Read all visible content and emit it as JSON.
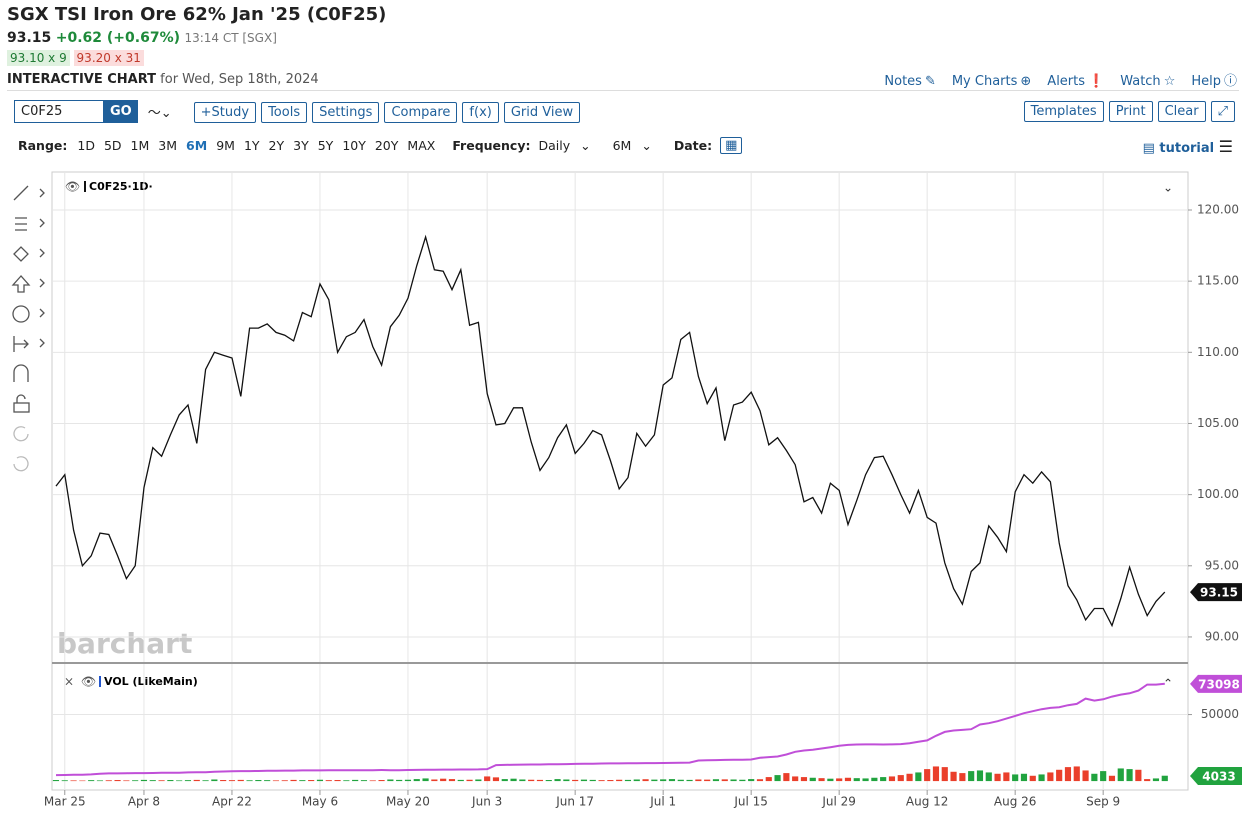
{
  "header": {
    "title": "SGX TSI Iron Ore 62% Jan '25 (C0F25)",
    "last": "93.15",
    "change": "+0.62 (+0.67%)",
    "time": "13:14 CT [SGX]",
    "bid": "93.10 x 9",
    "ask": "93.20 x 31",
    "chart_label": "INTERACTIVE CHART",
    "date": "for Wed, Sep 18th, 2024",
    "links": [
      "Notes",
      "My Charts",
      "Alerts",
      "Watch",
      "Help"
    ]
  },
  "toolbar": {
    "symbol": "C0F25",
    "go": "GO",
    "buttons": [
      "+Study",
      "Tools",
      "Settings",
      "Compare",
      "f(x)",
      "Grid View"
    ],
    "right_buttons": [
      "Templates",
      "Print",
      "Clear"
    ]
  },
  "range_bar": {
    "range_label": "Range:",
    "ranges": [
      "1D",
      "5D",
      "1M",
      "3M",
      "6M",
      "9M",
      "1Y",
      "2Y",
      "3Y",
      "5Y",
      "10Y",
      "20Y",
      "MAX"
    ],
    "active_index": 4,
    "frequency_label": "Frequency:",
    "frequency": "Daily",
    "period": "6M",
    "date_label": "Date:",
    "tutorial": "tutorial"
  },
  "chart_data": [
    {
      "type": "line",
      "label": "C0F25·1D·",
      "watermark": "barchart",
      "color": "#111111",
      "values": [
        100.6,
        101.4,
        97.5,
        95.0,
        95.7,
        97.3,
        97.2,
        95.7,
        94.1,
        95.0,
        100.5,
        103.3,
        102.7,
        104.2,
        105.6,
        106.3,
        103.6,
        108.8,
        110.0,
        109.8,
        109.6,
        106.9,
        111.7,
        111.7,
        112.0,
        111.4,
        111.2,
        110.8,
        112.8,
        112.5,
        114.8,
        113.7,
        110.0,
        111.1,
        111.4,
        112.3,
        110.4,
        109.1,
        111.8,
        112.6,
        113.8,
        116.1,
        118.1,
        115.8,
        115.7,
        114.4,
        115.8,
        111.9,
        112.1,
        107.1,
        104.9,
        105.0,
        106.1,
        106.1,
        103.7,
        101.7,
        102.6,
        104.0,
        104.9,
        102.9,
        103.6,
        104.5,
        104.2,
        102.4,
        100.4,
        101.2,
        104.3,
        103.4,
        104.2,
        107.7,
        108.2,
        110.9,
        111.4,
        108.3,
        106.4,
        107.5,
        103.8,
        106.3,
        106.5,
        107.2,
        105.9,
        103.5,
        104.0,
        103.1,
        102.1,
        99.5,
        99.8,
        98.7,
        100.8,
        100.3,
        97.9,
        99.6,
        101.4,
        102.6,
        102.7,
        101.4,
        100.0,
        98.7,
        100.3,
        98.4,
        98.0,
        95.2,
        93.4,
        92.3,
        94.6,
        95.2,
        97.8,
        97.0,
        96.0,
        100.2,
        101.4,
        100.8,
        101.6,
        100.9,
        96.6,
        93.6,
        92.6,
        91.2,
        92.0,
        92.0,
        90.8,
        92.7,
        94.9,
        93.0,
        91.5,
        92.5,
        93.15
      ],
      "xlim": [
        -0.45,
        128.64
      ],
      "xticks": [
        {
          "value": 1,
          "label": "Mar 25"
        },
        {
          "value": 10,
          "label": "Apr 8"
        },
        {
          "value": 20,
          "label": "Apr 22"
        },
        {
          "value": 30,
          "label": "May 6"
        },
        {
          "value": 40,
          "label": "May 20"
        },
        {
          "value": 49,
          "label": "Jun 3"
        },
        {
          "value": 59,
          "label": "Jun 17"
        },
        {
          "value": 69,
          "label": "Jul 1"
        },
        {
          "value": 79,
          "label": "Jul 15"
        },
        {
          "value": 89,
          "label": "Jul 29"
        },
        {
          "value": 99,
          "label": "Aug 12"
        },
        {
          "value": 109,
          "label": "Aug 26"
        },
        {
          "value": 119,
          "label": "Sep 9"
        }
      ],
      "ylim": [
        88.24,
        122.67
      ],
      "yticks": [
        {
          "value": 90,
          "label": "90.00"
        },
        {
          "value": 95,
          "label": "95.00"
        },
        {
          "value": 100,
          "label": "100.00"
        },
        {
          "value": 105,
          "label": "105.00"
        },
        {
          "value": 110,
          "label": "110.00"
        },
        {
          "value": 115,
          "label": "115.00"
        },
        {
          "value": 120,
          "label": "120.00"
        }
      ],
      "grid": true
    },
    {
      "type": "bar",
      "label": "VOL (LikeMain)",
      "up_color": "#21a33f",
      "down_color": "#ea3f2b",
      "values": [
        800,
        600,
        500,
        400,
        700,
        500,
        600,
        800,
        500,
        600,
        900,
        700,
        600,
        800,
        500,
        700,
        900,
        600,
        1200,
        800,
        700,
        900,
        600,
        800,
        700,
        500,
        600,
        900,
        700,
        800,
        1000,
        700,
        800,
        600,
        900,
        700,
        500,
        800,
        1200,
        900,
        1000,
        1500,
        2000,
        1200,
        1800,
        1500,
        900,
        1000,
        1200,
        3500,
        2800,
        1500,
        1800,
        1200,
        1000,
        900,
        800,
        1500,
        1200,
        900,
        1100,
        900,
        700,
        800,
        1000,
        900,
        1200,
        1400,
        1100,
        1300,
        1500,
        1000,
        900,
        1200,
        1100,
        1400,
        1300,
        1200,
        1000,
        1500,
        1400,
        3000,
        4500,
        6000,
        3500,
        3000,
        2500,
        2200,
        1800,
        2000,
        2500,
        2200,
        2000,
        2500,
        3000,
        3500,
        4500,
        5500,
        6500,
        9000,
        11000,
        10500,
        7000,
        6000,
        7500,
        8000,
        6500,
        5500,
        6500,
        5000,
        5500,
        4000,
        5000,
        6500,
        8500,
        10500,
        11000,
        8000,
        5500,
        7500,
        4000,
        9500,
        9000,
        8500,
        1500,
        2000,
        4033
      ],
      "line": {
        "color": "#c04fd8",
        "values": [
          4500,
          4600,
          4700,
          4800,
          5000,
          5500,
          5800,
          5800,
          5900,
          6000,
          6000,
          6100,
          6200,
          6200,
          6300,
          6500,
          6600,
          6700,
          7000,
          7200,
          7400,
          7500,
          7500,
          7600,
          7700,
          7800,
          7900,
          7900,
          8000,
          8000,
          8000,
          8100,
          8100,
          8100,
          8200,
          8200,
          8200,
          8300,
          8200,
          8200,
          8300,
          8400,
          8500,
          8500,
          8600,
          8600,
          8700,
          8700,
          8800,
          9000,
          12000,
          12200,
          12300,
          12400,
          12500,
          12500,
          12600,
          12700,
          12800,
          12900,
          13000,
          13100,
          13200,
          13300,
          13300,
          13400,
          13400,
          13500,
          13500,
          13600,
          13700,
          13800,
          13900,
          15500,
          15700,
          15800,
          15900,
          16000,
          16100,
          16200,
          17500,
          18000,
          18500,
          20000,
          22000,
          23000,
          23500,
          24500,
          25500,
          26500,
          27200,
          27500,
          27600,
          27600,
          27500,
          27600,
          27800,
          28500,
          29500,
          30600,
          34000,
          37000,
          38000,
          38500,
          39000,
          42500,
          43500,
          45000,
          47000,
          49000,
          51000,
          52500,
          54000,
          55000,
          55500,
          57000,
          58000,
          62000,
          60500,
          61500,
          63500,
          65000,
          66000,
          68000,
          72500,
          72500,
          73098
        ]
      },
      "ylim": [
        -6700,
        88000
      ],
      "yticks": [
        50000
      ],
      "grid": true
    }
  ]
}
